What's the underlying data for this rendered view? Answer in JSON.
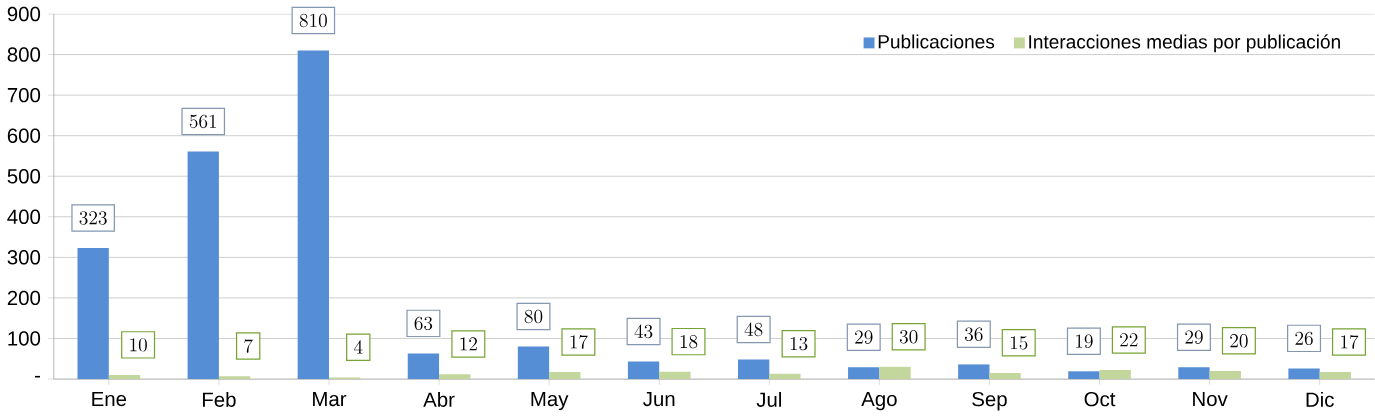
{
  "chart_data": {
    "type": "bar",
    "categories": [
      "Ene",
      "Feb",
      "Mar",
      "Abr",
      "May",
      "Jun",
      "Jul",
      "Ago",
      "Sep",
      "Oct",
      "Nov",
      "Dic"
    ],
    "series": [
      {
        "name": "Publicaciones",
        "color": "#558ed5",
        "values": [
          323,
          561,
          810,
          63,
          80,
          43,
          48,
          29,
          36,
          19,
          29,
          26
        ]
      },
      {
        "name": "Interacciones medias por publicación",
        "color": "#c3d69b",
        "values": [
          10,
          7,
          4,
          12,
          17,
          18,
          13,
          30,
          15,
          22,
          20,
          17
        ]
      }
    ],
    "ylim": [
      0,
      900
    ],
    "yticks": [
      {
        "value": 0,
        "label": "-"
      },
      100,
      200,
      300,
      400,
      500,
      600,
      700,
      800,
      900
    ],
    "grid": "y",
    "legend": "top right",
    "data_labels": true
  }
}
